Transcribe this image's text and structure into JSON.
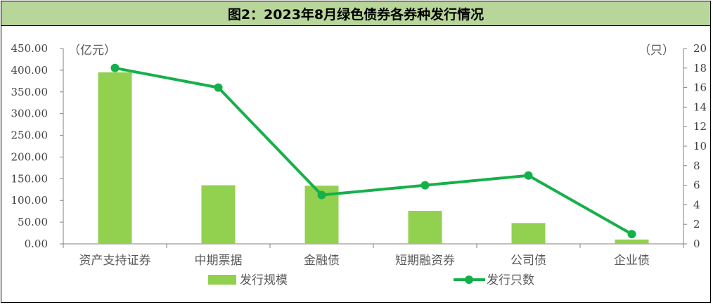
{
  "title": "图2：2023年8月绿色债券各券种发行情况",
  "chart_data": {
    "type": "bar+line",
    "categories": [
      "资产支持证券",
      "中期票据",
      "金融债",
      "短期融资券",
      "公司债",
      "企业债"
    ],
    "series": [
      {
        "name": "发行规模",
        "type": "bar",
        "axis": "left",
        "color": "#92d050",
        "values": [
          395,
          135,
          134,
          76,
          48,
          10
        ]
      },
      {
        "name": "发行只数",
        "type": "line",
        "axis": "right",
        "color": "#16b04a",
        "values": [
          18,
          16,
          5,
          6,
          7,
          1
        ]
      }
    ],
    "y_left": {
      "unit": "（亿元）",
      "ylim": [
        0,
        450
      ],
      "ticks": [
        "0.00",
        "50.00",
        "100.00",
        "150.00",
        "200.00",
        "250.00",
        "300.00",
        "350.00",
        "400.00",
        "450.00"
      ]
    },
    "y_right": {
      "unit": "（只）",
      "ylim": [
        0,
        20
      ],
      "ticks": [
        "0",
        "2",
        "4",
        "6",
        "8",
        "10",
        "12",
        "14",
        "16",
        "18",
        "20"
      ]
    },
    "legend": {
      "position": "bottom"
    },
    "grid": false
  }
}
